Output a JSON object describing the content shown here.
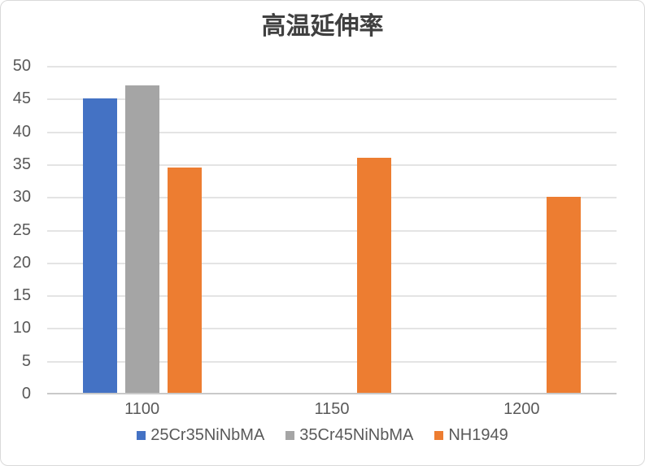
{
  "chart_data": {
    "type": "bar",
    "title": "高温延伸率",
    "categories": [
      "1100",
      "1150",
      "1200"
    ],
    "series": [
      {
        "name": "25Cr35NiNbMA",
        "color": "#4472C4",
        "values": [
          45,
          null,
          null
        ]
      },
      {
        "name": "35Cr45NiNbMA",
        "color": "#A5A5A5",
        "values": [
          47,
          null,
          null
        ]
      },
      {
        "name": "NH1949",
        "color": "#ED7D31",
        "values": [
          34.5,
          36,
          30
        ]
      }
    ],
    "xlabel": "",
    "ylabel": "",
    "ylim": [
      0,
      50
    ],
    "yticks": [
      0,
      5,
      10,
      15,
      20,
      25,
      30,
      35,
      40,
      45,
      50
    ],
    "grid": true,
    "legend_position": "bottom"
  },
  "style_colors": {
    "title_text": "#404040",
    "axis_text": "#595959",
    "gridline": "#E4E4E4",
    "axis_line": "#C9C9C9",
    "chart_border": "#D9D9D9",
    "background": "#FFFFFF"
  }
}
